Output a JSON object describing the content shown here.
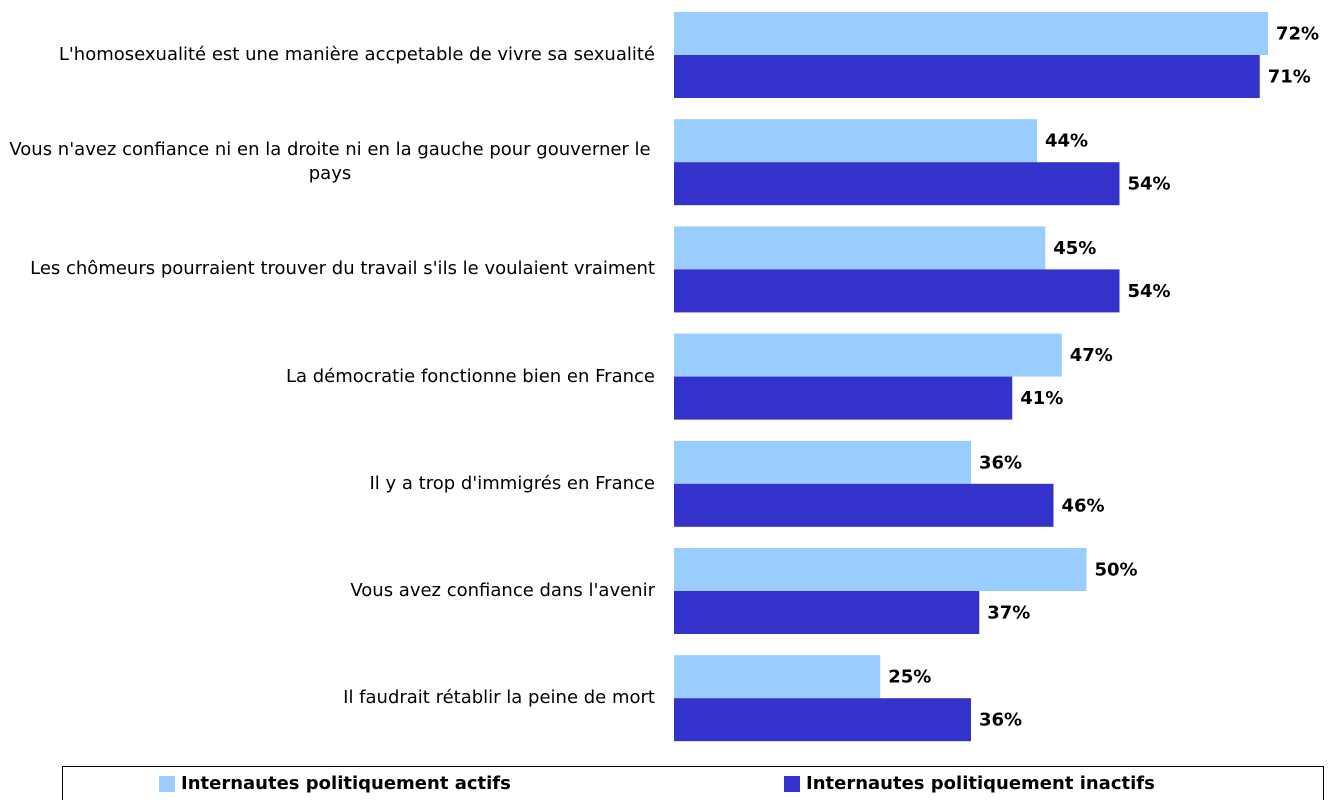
{
  "chart_data": {
    "type": "bar",
    "orientation": "horizontal",
    "categories": [
      "L'homosexualité est une manière accpetable de vivre sa sexualité",
      "Vous n'avez confiance ni en la droite ni en la gauche pour gouverner le pays",
      "Les chômeurs pourraient trouver du travail s'ils le voulaient vraiment",
      "La démocratie fonctionne bien en France",
      "Il y a trop d'immigrés en France",
      "Vous avez confiance dans l'avenir",
      "Il faudrait rétablir la peine de mort"
    ],
    "series": [
      {
        "name": "Internautes politiquement actifs",
        "color": "#99ccff",
        "values": [
          72,
          44,
          45,
          47,
          36,
          50,
          25
        ],
        "value_labels": [
          "72%",
          "44%",
          "45%",
          "47%",
          "36%",
          "50%",
          "25%"
        ]
      },
      {
        "name": "Internautes politiquement inactifs",
        "color": "#3333cc",
        "values": [
          71,
          54,
          54,
          41,
          46,
          37,
          36
        ],
        "value_labels": [
          "71%",
          "54%",
          "54%",
          "41%",
          "46%",
          "37%",
          "36%"
        ]
      }
    ],
    "xlim": [
      0,
      80
    ]
  }
}
